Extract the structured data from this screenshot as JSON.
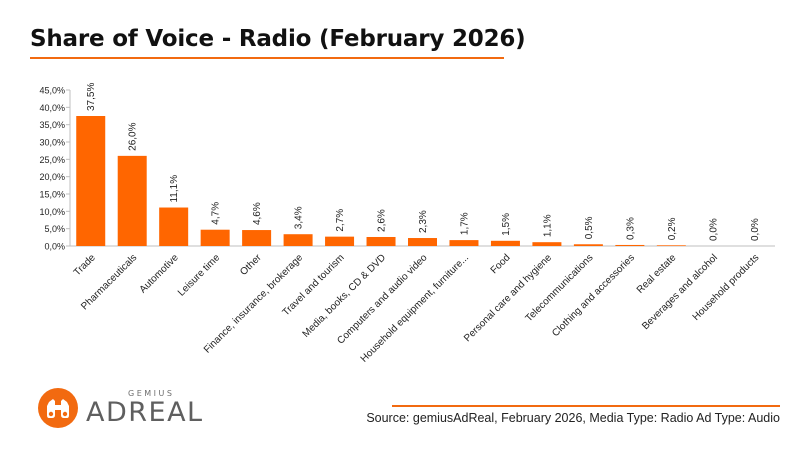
{
  "title": "Share of Voice - Radio (February 2026)",
  "source": "Source: gemiusAdReal, February 2026, Media Type: Radio Ad Type: Audio",
  "logo": {
    "top_text": "GEMIUS",
    "main_text": "ADREAL"
  },
  "colors": {
    "bar": "#ff6600",
    "accent": "#f26a10",
    "axis": "#bfbfbf",
    "text": "#222222"
  },
  "chart_data": {
    "type": "bar",
    "categories": [
      "Trade",
      "Pharmaceuticals",
      "Automotive",
      "Leisure time",
      "Other",
      "Finance, insurance, brokerage",
      "Travel and tourism",
      "Media, books, CD & DVD",
      "Computers and audio video",
      "Household equipment, furniture...",
      "Food",
      "Personal care and hygiene",
      "Telecommunications",
      "Clothing and accessories",
      "Real estate",
      "Beverages and alcohol",
      "Household products"
    ],
    "values": [
      37.5,
      26.0,
      11.1,
      4.7,
      4.6,
      3.4,
      2.7,
      2.6,
      2.3,
      1.7,
      1.5,
      1.1,
      0.5,
      0.3,
      0.2,
      0.0,
      0.0
    ],
    "data_labels": [
      "37,5%",
      "26,0%",
      "11,1%",
      "4,7%",
      "4,6%",
      "3,4%",
      "2,7%",
      "2,6%",
      "2,3%",
      "1,7%",
      "1,5%",
      "1,1%",
      "0,5%",
      "0,3%",
      "0,2%",
      "0,0%",
      "0,0%"
    ],
    "ylim": [
      0,
      45
    ],
    "yticks": [
      0,
      5,
      10,
      15,
      20,
      25,
      30,
      35,
      40,
      45
    ],
    "ytick_labels": [
      "0,0%",
      "5,0%",
      "10,0%",
      "15,0%",
      "20,0%",
      "25,0%",
      "30,0%",
      "35,0%",
      "40,0%",
      "45,0%"
    ],
    "grid": false,
    "legend": "none"
  }
}
